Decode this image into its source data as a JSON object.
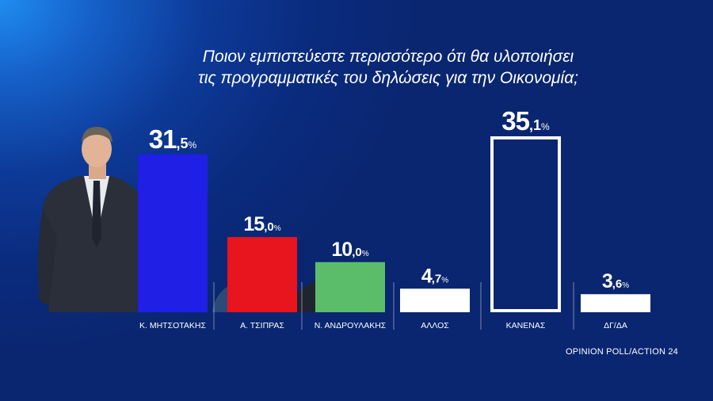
{
  "chart_data": {
    "type": "bar",
    "title_lines": [
      "Ποιον εμπιστεύεστε περισσότερο ότι θα υλοποιήσει",
      "τις προγραμματικές του δηλώσεις για την Οικονομία;"
    ],
    "categories": [
      "Κ. ΜΗΤΣΟΤΑΚΗΣ",
      "Α. ΤΣΙΠΡΑΣ",
      "Ν. ΑΝΔΡΟΥΛΑΚΗΣ",
      "ΑΛΛΟΣ",
      "ΚΑΝΕΝΑΣ",
      "ΔΓ/ΔΑ"
    ],
    "values": [
      31.5,
      15.0,
      10.0,
      4.7,
      35.1,
      3.6
    ],
    "value_labels": [
      {
        "int": "31",
        "dec": ",5",
        "unit": "%"
      },
      {
        "int": "15",
        "dec": ",0",
        "unit": "%"
      },
      {
        "int": "10",
        "dec": ",0",
        "unit": "%"
      },
      {
        "int": "4",
        "dec": ",7",
        "unit": "%"
      },
      {
        "int": "35",
        "dec": ",1",
        "unit": "%"
      },
      {
        "int": "3",
        "dec": ",6",
        "unit": "%"
      }
    ],
    "colors": [
      "#1f1fe6",
      "#e8141e",
      "#5bbd6a",
      "#ffffff",
      "outline-white",
      "#ffffff"
    ],
    "ylim": [
      0,
      35.1
    ],
    "grid": false,
    "legend": "none"
  },
  "source": "OPINION POLL/ACTION 24"
}
